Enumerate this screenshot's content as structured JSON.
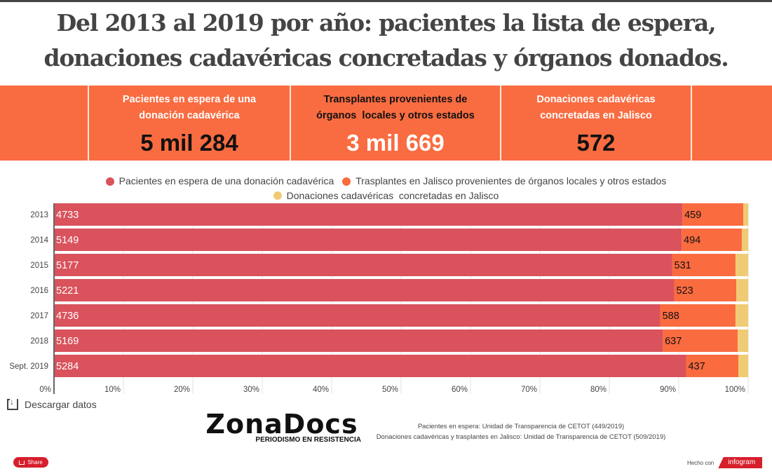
{
  "title": {
    "line1": "Del 2013 al 2019 por año: pacientes la lista de espera,",
    "line2": "donaciones cadavéricas concretadas y órganos donados."
  },
  "stats": [
    {
      "label_line1": "Pacientes en espera de una",
      "label_line2": "donación cadavérica",
      "value": "5 mil 284",
      "label_color": "#ffffff",
      "value_color": "#111111"
    },
    {
      "label_line1": "Transplantes provenientes de",
      "label_line2": "órganos  locales y otros estados",
      "value": "3 mil 669",
      "label_color": "#111111",
      "value_color": "#ffffff"
    },
    {
      "label_line1": "Donaciones cadavéricas",
      "label_line2": "concretadas en Jalisco",
      "value": "572",
      "label_color": "#ffffff",
      "value_color": "#111111"
    }
  ],
  "colors": {
    "banner": "#f96c41",
    "patients": "#d9525c",
    "transplants": "#fa6b40",
    "donations": "#f0cb75",
    "share": "#d71f2c"
  },
  "chart_data": {
    "type": "bar",
    "orientation": "horizontal",
    "stacking": "percent",
    "categories": [
      "2013",
      "2014",
      "2015",
      "2016",
      "2017",
      "2018",
      "Sept. 2019"
    ],
    "series": [
      {
        "name": "Pacientes en espera de una donación cadavérica",
        "values": [
          4733,
          5149,
          5177,
          5221,
          4736,
          5169,
          5284
        ],
        "labeled": true
      },
      {
        "name": "Trasplantes en Jalisco provenientes de órganos locales y otros estados",
        "values": [
          459,
          494,
          531,
          523,
          588,
          637,
          437
        ],
        "labeled": true
      },
      {
        "name": "Donaciones cadavéricas  concretadas en Jalisco",
        "values": [
          37,
          52,
          106,
          100,
          99,
          89,
          82
        ],
        "labeled": false,
        "estimated": true
      }
    ],
    "xaxis": {
      "ticks": [
        "0%",
        "10%",
        "20%",
        "30%",
        "40%",
        "50%",
        "60%",
        "70%",
        "80%",
        "90%",
        "100%"
      ],
      "range": [
        0,
        100
      ],
      "grid": true
    },
    "legend": {
      "placement": "top-center"
    }
  },
  "download_label": "Descargar datos",
  "logo": {
    "name": "ZonaDocs",
    "tagline": "PERIODISMO EN RESISTENCIA"
  },
  "sources": [
    "Pacientes en espera: Unidad de Transparencia de CETOT (449/2019)",
    "Donaciones cadavéricas y trasplantes en Jalisco: Unidad de Transparencia de CETOT (509/2019)"
  ],
  "share_label": "Share",
  "made_with": {
    "prefix": "Hecho con",
    "brand": "infogram"
  }
}
